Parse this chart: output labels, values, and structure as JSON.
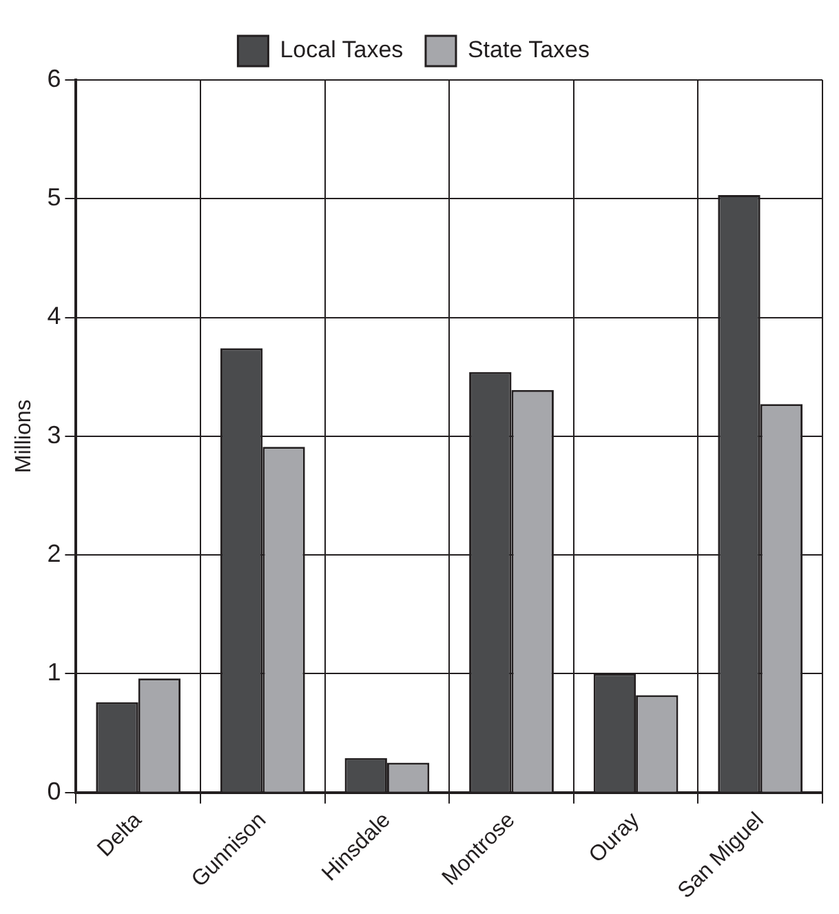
{
  "chart_data": {
    "type": "bar",
    "ylabel": "Millions",
    "categories": [
      "Delta",
      "Gunnison",
      "Hinsdale",
      "Montrose",
      "Ouray",
      "San Miguel"
    ],
    "series": [
      {
        "name": "Local Taxes",
        "color": "#4a4b4d",
        "values": [
          0.76,
          3.74,
          0.29,
          3.54,
          1.0,
          5.03
        ]
      },
      {
        "name": "State Taxes",
        "color": "#a6a7ab",
        "values": [
          0.96,
          2.91,
          0.25,
          3.39,
          0.82,
          3.27
        ]
      }
    ],
    "ylim": [
      0,
      6
    ],
    "yticks": [
      0,
      1,
      2,
      3,
      4,
      5,
      6
    ],
    "grid": true,
    "legend": "top"
  }
}
